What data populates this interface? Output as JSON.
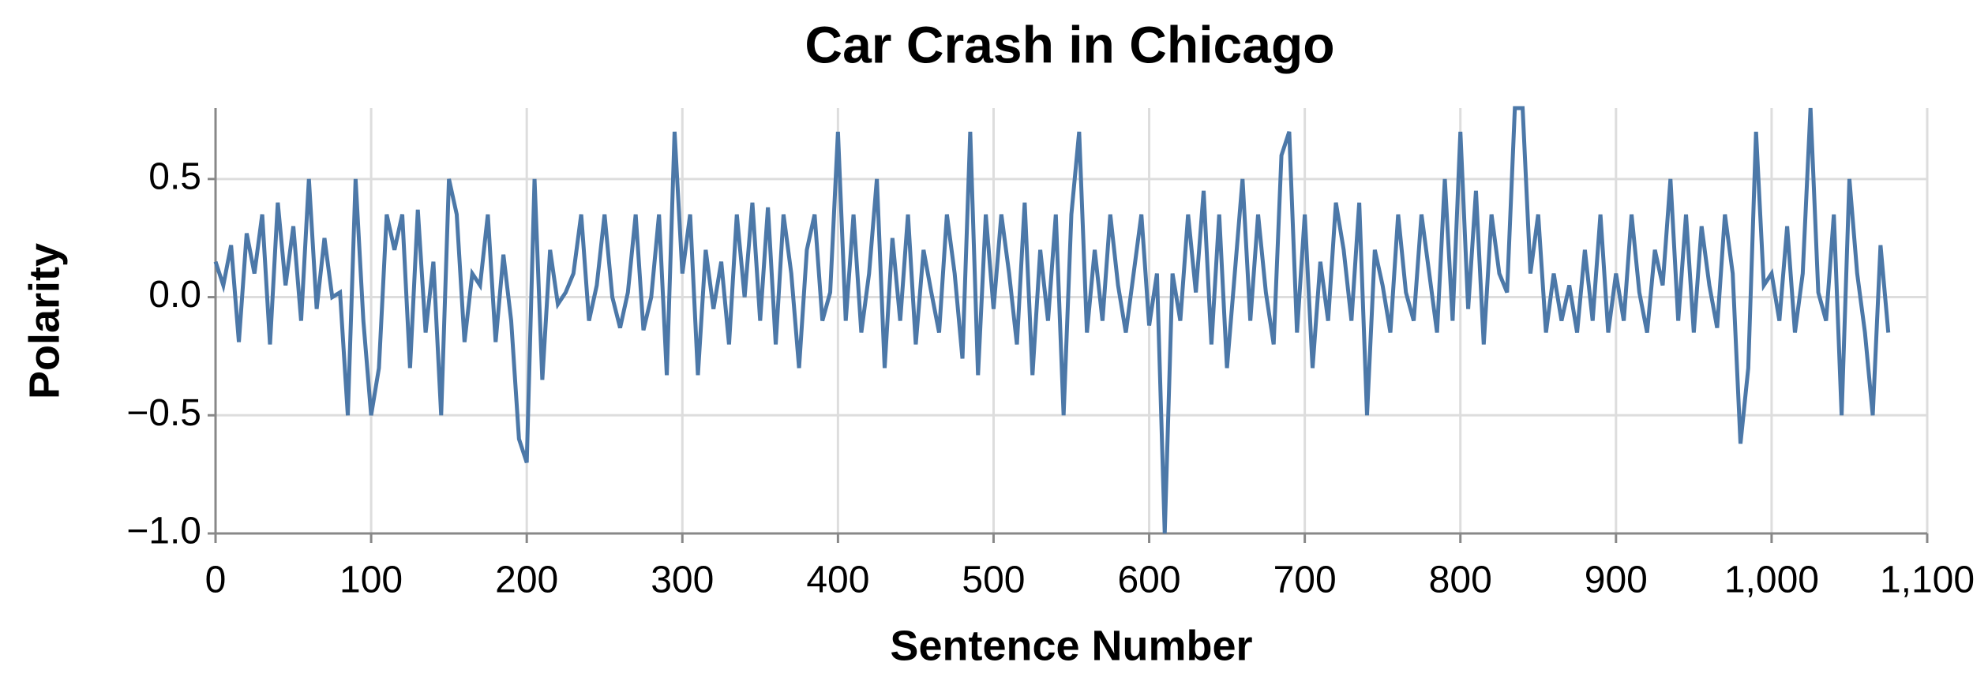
{
  "chart_data": {
    "type": "line",
    "title": "Car Crash in Chicago",
    "x_label": "Sentence Number",
    "y_label": "Polarity",
    "color": "#4c78a8",
    "grid": true,
    "xlim": [
      0,
      1100
    ],
    "ylim": [
      -1,
      0.8
    ],
    "xticks": [
      0,
      100,
      200,
      300,
      400,
      500,
      600,
      700,
      800,
      900,
      {
        "value": 1000,
        "label": "1,000"
      },
      {
        "value": 1100,
        "label": "1,100"
      }
    ],
    "yticks": [
      {
        "value": -1,
        "label": "−1.0"
      },
      {
        "value": -0.5,
        "label": "−0.5"
      },
      {
        "value": 0,
        "label": "0.0"
      },
      0.5
    ],
    "x": [
      0,
      5,
      10,
      15,
      20,
      25,
      30,
      35,
      40,
      45,
      50,
      55,
      60,
      65,
      70,
      75,
      80,
      85,
      90,
      95,
      100,
      105,
      110,
      115,
      120,
      125,
      130,
      135,
      140,
      145,
      150,
      155,
      160,
      165,
      170,
      175,
      180,
      185,
      190,
      195,
      200,
      205,
      210,
      215,
      220,
      225,
      230,
      235,
      240,
      245,
      250,
      255,
      260,
      265,
      270,
      275,
      280,
      285,
      290,
      295,
      300,
      305,
      310,
      315,
      320,
      325,
      330,
      335,
      340,
      345,
      350,
      355,
      360,
      365,
      370,
      375,
      380,
      385,
      390,
      395,
      400,
      405,
      410,
      415,
      420,
      425,
      430,
      435,
      440,
      445,
      450,
      455,
      460,
      465,
      470,
      475,
      480,
      485,
      490,
      495,
      500,
      505,
      510,
      515,
      520,
      525,
      530,
      535,
      540,
      545,
      550,
      555,
      560,
      565,
      570,
      575,
      580,
      585,
      590,
      595,
      600,
      605,
      610,
      615,
      620,
      625,
      630,
      635,
      640,
      645,
      650,
      655,
      660,
      665,
      670,
      675,
      680,
      685,
      690,
      695,
      700,
      705,
      710,
      715,
      720,
      725,
      730,
      735,
      740,
      745,
      750,
      755,
      760,
      765,
      770,
      775,
      780,
      785,
      790,
      795,
      800,
      805,
      810,
      815,
      820,
      825,
      830,
      835,
      840,
      845,
      850,
      855,
      860,
      865,
      870,
      875,
      880,
      885,
      890,
      895,
      900,
      905,
      910,
      915,
      920,
      925,
      930,
      935,
      940,
      945,
      950,
      955,
      960,
      965,
      970,
      975,
      980,
      985,
      990,
      995,
      1000,
      1005,
      1010,
      1015,
      1020,
      1025,
      1030,
      1035,
      1040,
      1045,
      1050,
      1055,
      1060,
      1065,
      1070,
      1075
    ],
    "values": [
      0.15,
      0.05,
      0.22,
      -0.19,
      0.27,
      0.1,
      0.35,
      -0.2,
      0.4,
      0.05,
      0.3,
      -0.1,
      0.5,
      -0.05,
      0.25,
      0,
      0.02,
      -0.5,
      0.5,
      -0.1,
      -0.5,
      -0.3,
      0.35,
      0.2,
      0.35,
      -0.3,
      0.37,
      -0.15,
      0.15,
      -0.5,
      0.5,
      0.35,
      -0.19,
      0.1,
      0.05,
      0.35,
      -0.19,
      0.18,
      -0.1,
      -0.6,
      -0.7,
      0.5,
      -0.35,
      0.2,
      -0.03,
      0.02,
      0.1,
      0.35,
      -0.1,
      0.05,
      0.35,
      0,
      -0.13,
      0.02,
      0.35,
      -0.14,
      0,
      0.35,
      -0.33,
      0.7,
      0.1,
      0.35,
      -0.33,
      0.2,
      -0.05,
      0.15,
      -0.2,
      0.35,
      0,
      0.4,
      -0.1,
      0.38,
      -0.2,
      0.35,
      0.1,
      -0.3,
      0.2,
      0.35,
      -0.1,
      0.02,
      0.7,
      -0.1,
      0.35,
      -0.15,
      0.1,
      0.5,
      -0.3,
      0.25,
      -0.1,
      0.35,
      -0.2,
      0.2,
      0.02,
      -0.15,
      0.35,
      0.1,
      -0.26,
      0.7,
      -0.33,
      0.35,
      -0.05,
      0.35,
      0.1,
      -0.2,
      0.4,
      -0.33,
      0.2,
      -0.1,
      0.35,
      -0.5,
      0.35,
      0.7,
      -0.15,
      0.2,
      -0.1,
      0.35,
      0.05,
      -0.15,
      0.1,
      0.35,
      -0.12,
      0.1,
      -1.0,
      0.1,
      -0.1,
      0.35,
      0.02,
      0.45,
      -0.2,
      0.35,
      -0.3,
      0.1,
      0.5,
      -0.1,
      0.35,
      0.02,
      -0.2,
      0.6,
      0.7,
      -0.15,
      0.35,
      -0.3,
      0.15,
      -0.1,
      0.4,
      0.2,
      -0.1,
      0.4,
      -0.5,
      0.2,
      0.05,
      -0.15,
      0.35,
      0.02,
      -0.1,
      0.35,
      0.1,
      -0.15,
      0.5,
      -0.1,
      0.7,
      -0.05,
      0.45,
      -0.2,
      0.35,
      0.1,
      0.02,
      0.8,
      0.8,
      0.1,
      0.35,
      -0.15,
      0.1,
      -0.1,
      0.05,
      -0.15,
      0.2,
      -0.1,
      0.35,
      -0.15,
      0.1,
      -0.1,
      0.35,
      0.02,
      -0.15,
      0.2,
      0.05,
      0.5,
      -0.1,
      0.35,
      -0.15,
      0.3,
      0.05,
      -0.13,
      0.35,
      0.1,
      -0.62,
      -0.3,
      0.7,
      0.05,
      0.1,
      -0.1,
      0.3,
      -0.15,
      0.1,
      0.8,
      0.02,
      -0.1,
      0.35,
      -0.5,
      0.5,
      0.1,
      -0.15,
      -0.5,
      0.22,
      -0.15
    ]
  }
}
